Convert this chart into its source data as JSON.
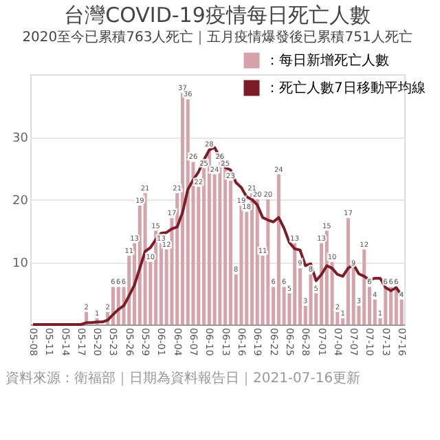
{
  "chart_data": {
    "type": "bar",
    "title": "台灣COVID-19疫情每日死亡人數",
    "subtitle": "2020至今已累積763人死亡｜五月疫情爆發後已累積751人死亡",
    "categories": [
      "05-08",
      null,
      null,
      "05-11",
      null,
      null,
      "05-14",
      null,
      null,
      "05-17",
      null,
      null,
      "05-20",
      null,
      null,
      "05-23",
      null,
      null,
      "05-26",
      null,
      null,
      "05-29",
      null,
      null,
      "06-01",
      null,
      null,
      "06-04",
      null,
      null,
      "06-07",
      null,
      null,
      "06-10",
      null,
      null,
      "06-13",
      null,
      null,
      "06-16",
      null,
      null,
      "06-19",
      null,
      null,
      "06-22",
      null,
      null,
      "06-25",
      null,
      null,
      "06-28",
      null,
      null,
      "07-01",
      null,
      null,
      "07-04",
      null,
      null,
      "07-07",
      null,
      null,
      "07-10",
      null,
      null,
      "07-13",
      null,
      null,
      "07-16"
    ],
    "series": [
      {
        "name": "：每日新增死亡人數",
        "color": "#d6a3ab",
        "values": [
          0,
          0,
          0,
          0,
          0,
          0,
          0,
          0,
          0,
          0,
          2,
          0,
          1,
          0,
          2,
          6,
          6,
          6,
          11,
          13,
          19,
          21,
          10,
          15,
          13,
          12,
          17,
          21,
          37,
          36,
          26,
          22,
          25,
          28,
          24,
          26,
          25,
          23,
          8,
          19,
          18,
          21,
          20,
          11,
          20,
          6,
          24,
          6,
          5,
          13,
          9,
          3,
          8,
          5,
          13,
          15,
          10,
          2,
          1,
          17,
          9,
          3,
          12,
          6,
          4,
          1,
          6,
          6,
          6,
          4
        ],
        "value_labels": [
          null,
          null,
          null,
          null,
          null,
          null,
          null,
          null,
          null,
          null,
          "2",
          null,
          "1",
          null,
          "2",
          "6",
          "6",
          "6",
          "11",
          "13",
          "19",
          "21",
          "10",
          "15",
          "13",
          "12",
          "17",
          "21",
          "37",
          "36",
          "26",
          "22",
          "25",
          "28",
          "24",
          "26",
          "25",
          "23",
          "8",
          "19",
          "18",
          "21",
          "20",
          "11",
          "20",
          "6",
          "24",
          "6",
          "5",
          "13",
          "9",
          "3",
          "8",
          "5",
          "13",
          "15",
          "10",
          "2",
          "1",
          "17",
          "9",
          "3",
          "12",
          "6",
          "4",
          "1",
          "6",
          "6",
          "6",
          "4"
        ]
      },
      {
        "name": "：死亡人數7日移動平均線",
        "type": "line",
        "color": "#7b1c28",
        "values": [
          0,
          0,
          0,
          0,
          0,
          0,
          0,
          0,
          0,
          0,
          0.3,
          0.3,
          0.4,
          0.4,
          0.7,
          1.6,
          2.4,
          3.0,
          4.6,
          6.3,
          9.0,
          11.7,
          12.3,
          13.6,
          14.6,
          14.7,
          15.3,
          15.6,
          17.9,
          21.6,
          23.1,
          24.4,
          26.3,
          27.9,
          28.3,
          26.7,
          25.1,
          24.7,
          22.7,
          21.9,
          20.4,
          20.0,
          19.1,
          17.1,
          16.7,
          16.4,
          17.1,
          15.4,
          13.1,
          12.1,
          11.9,
          9.4,
          9.7,
          7.0,
          8.0,
          9.4,
          9.0,
          8.0,
          7.7,
          9.0,
          9.6,
          8.1,
          7.7,
          7.1,
          7.4,
          7.4,
          5.9,
          5.4,
          5.9,
          4.7
        ]
      }
    ],
    "ylim": [
      0,
      40
    ],
    "yticks": [
      10,
      20,
      30
    ],
    "grid": "y",
    "legend": "top right",
    "marker": "none",
    "line_style": "solid",
    "annotations": [
      "資料來源：衛福部｜日期為資料報告日｜2021-07-16更新"
    ]
  }
}
